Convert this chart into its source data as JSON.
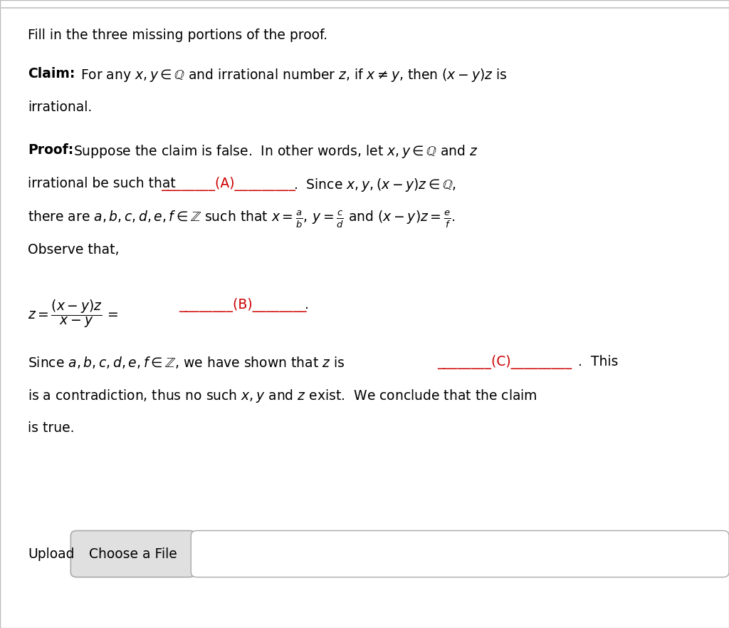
{
  "background_color": "#e8e8e8",
  "content_background": "#ffffff",
  "title_text": "Fill in the three missing portions of the proof.",
  "claim_label": "Claim:",
  "proof_label": "Proof:",
  "upload_text": "Upload",
  "button_text": "Choose a File",
  "blank_color": "#cc0000",
  "text_color": "#000000",
  "button_bg": "#e0e0e0",
  "button_border": "#aaaaaa",
  "fs": 13.5,
  "lm": 0.038
}
